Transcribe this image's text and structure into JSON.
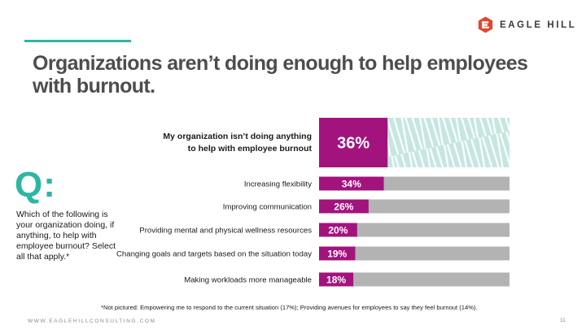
{
  "header": {
    "logo_text": "EAGLE HILL",
    "logo_icon": "eagle-hill-logo-icon",
    "title": "Organizations aren’t doing enough to help employees with burnout."
  },
  "question": {
    "mark": "Q:",
    "text": "Which of the following is your organization doing, if anything, to help with employee burnout? Select all that apply.*"
  },
  "chart_data": {
    "type": "bar",
    "orientation": "horizontal",
    "highlight": {
      "label_lines": [
        "My organization isn’t doing anything",
        "to help with employee burnout"
      ],
      "value": 36,
      "value_label": "36%"
    },
    "categories": [
      "Increasing flexibility",
      "Improving communication",
      "Providing mental and physical wellness resources",
      "Changing goals and targets based on the situation today",
      "Making workloads more manageable"
    ],
    "values": [
      34,
      26,
      20,
      19,
      18
    ],
    "value_labels": [
      "34%",
      "26%",
      "20%",
      "19%",
      "18%"
    ],
    "xlim": [
      0,
      100
    ],
    "grid": false,
    "legend": "none",
    "colors": {
      "bar": "#a3137e",
      "track": "#b3b3b3",
      "highlight_track": "#c6e6e0",
      "highlight_pattern": "#ffffff",
      "value_text": "#ffffff"
    }
  },
  "footnote": "*Not pictured: Empowering me to respond to the current situation (17%); Providing avenues for employees to say they feel burnout (14%).",
  "footer": {
    "url": "WWW.EAGLEHILLCONSULTING.COM",
    "page_number": "11"
  }
}
